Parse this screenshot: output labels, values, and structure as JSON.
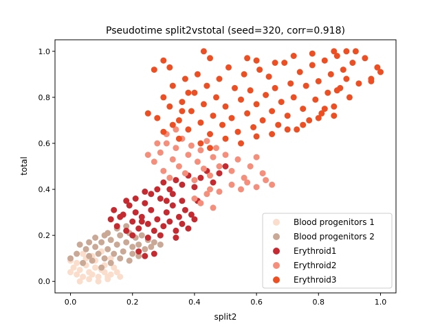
{
  "chart_data": {
    "type": "scatter",
    "title": "Pseudotime split2vstotal (seed=320, corr=0.918)",
    "xlabel": "split2",
    "ylabel": "total",
    "xlim": [
      -0.05,
      1.05
    ],
    "ylim": [
      -0.05,
      1.05
    ],
    "xticks": [
      "0.0",
      "0.2",
      "0.4",
      "0.6",
      "0.8",
      "1.0"
    ],
    "yticks": [
      "0.0",
      "0.2",
      "0.4",
      "0.6",
      "0.8",
      "1.0"
    ],
    "grid": false,
    "legend_position": "lower-right",
    "series": [
      {
        "name": "Blood progenitors 1",
        "color": "#fbddcb",
        "points": [
          [
            0.0,
            0.04
          ],
          [
            0.01,
            0.06
          ],
          [
            0.02,
            0.03
          ],
          [
            0.03,
            0.05
          ],
          [
            0.04,
            0.02
          ],
          [
            0.05,
            0.07
          ],
          [
            0.06,
            0.04
          ],
          [
            0.07,
            0.03
          ],
          [
            0.08,
            0.06
          ],
          [
            0.09,
            0.02
          ],
          [
            0.1,
            0.05
          ],
          [
            0.11,
            0.04
          ],
          [
            0.12,
            0.02
          ],
          [
            0.13,
            0.03
          ],
          [
            0.02,
            0.08
          ],
          [
            0.05,
            0.1
          ],
          [
            0.08,
            0.09
          ],
          [
            0.11,
            0.07
          ],
          [
            0.14,
            0.06
          ],
          [
            0.03,
            0.0
          ],
          [
            0.06,
            0.01
          ],
          [
            0.09,
            0.0
          ],
          [
            0.12,
            0.01
          ],
          [
            0.15,
            0.04
          ],
          [
            0.16,
            0.02
          ],
          [
            0.0,
            0.09
          ],
          [
            0.04,
            0.12
          ],
          [
            0.07,
            0.11
          ],
          [
            0.1,
            0.13
          ],
          [
            0.13,
            0.1
          ]
        ]
      },
      {
        "name": "Blood progenitors 2",
        "color": "#c9a896",
        "points": [
          [
            0.0,
            0.1
          ],
          [
            0.02,
            0.12
          ],
          [
            0.04,
            0.08
          ],
          [
            0.05,
            0.14
          ],
          [
            0.06,
            0.11
          ],
          [
            0.08,
            0.15
          ],
          [
            0.09,
            0.12
          ],
          [
            0.1,
            0.17
          ],
          [
            0.11,
            0.1
          ],
          [
            0.12,
            0.14
          ],
          [
            0.13,
            0.18
          ],
          [
            0.14,
            0.12
          ],
          [
            0.15,
            0.16
          ],
          [
            0.16,
            0.2
          ],
          [
            0.17,
            0.13
          ],
          [
            0.18,
            0.17
          ],
          [
            0.19,
            0.21
          ],
          [
            0.2,
            0.15
          ],
          [
            0.21,
            0.19
          ],
          [
            0.22,
            0.16
          ],
          [
            0.23,
            0.2
          ],
          [
            0.24,
            0.14
          ],
          [
            0.25,
            0.18
          ],
          [
            0.26,
            0.15
          ],
          [
            0.07,
            0.09
          ],
          [
            0.1,
            0.06
          ],
          [
            0.13,
            0.08
          ],
          [
            0.16,
            0.1
          ],
          [
            0.19,
            0.09
          ],
          [
            0.22,
            0.11
          ],
          [
            0.08,
            0.19
          ],
          [
            0.12,
            0.21
          ],
          [
            0.15,
            0.23
          ],
          [
            0.18,
            0.24
          ],
          [
            0.03,
            0.16
          ],
          [
            0.06,
            0.17
          ],
          [
            0.2,
            0.12
          ],
          [
            0.27,
            0.17
          ],
          [
            0.29,
            0.16
          ],
          [
            0.11,
            0.2
          ]
        ]
      },
      {
        "name": "Erythroid1",
        "color": "#c42a2f",
        "points": [
          [
            0.13,
            0.27
          ],
          [
            0.14,
            0.31
          ],
          [
            0.15,
            0.24
          ],
          [
            0.17,
            0.29
          ],
          [
            0.18,
            0.22
          ],
          [
            0.19,
            0.33
          ],
          [
            0.2,
            0.26
          ],
          [
            0.21,
            0.3
          ],
          [
            0.22,
            0.23
          ],
          [
            0.23,
            0.28
          ],
          [
            0.24,
            0.34
          ],
          [
            0.25,
            0.25
          ],
          [
            0.26,
            0.31
          ],
          [
            0.27,
            0.22
          ],
          [
            0.28,
            0.27
          ],
          [
            0.29,
            0.36
          ],
          [
            0.3,
            0.24
          ],
          [
            0.31,
            0.3
          ],
          [
            0.32,
            0.26
          ],
          [
            0.33,
            0.33
          ],
          [
            0.34,
            0.22
          ],
          [
            0.35,
            0.28
          ],
          [
            0.36,
            0.25
          ],
          [
            0.37,
            0.31
          ],
          [
            0.38,
            0.23
          ],
          [
            0.39,
            0.29
          ],
          [
            0.4,
            0.27
          ],
          [
            0.32,
            0.4
          ],
          [
            0.34,
            0.44
          ],
          [
            0.36,
            0.42
          ],
          [
            0.38,
            0.46
          ],
          [
            0.4,
            0.41
          ],
          [
            0.42,
            0.45
          ],
          [
            0.44,
            0.48
          ],
          [
            0.46,
            0.43
          ],
          [
            0.3,
            0.43
          ],
          [
            0.28,
            0.4
          ],
          [
            0.26,
            0.38
          ],
          [
            0.2,
            0.2
          ],
          [
            0.25,
            0.19
          ],
          [
            0.22,
            0.13
          ],
          [
            0.24,
            0.11
          ],
          [
            0.27,
            0.12
          ],
          [
            0.18,
            0.35
          ],
          [
            0.16,
            0.28
          ],
          [
            0.21,
            0.36
          ],
          [
            0.33,
            0.38
          ],
          [
            0.48,
            0.47
          ],
          [
            0.5,
            0.5
          ],
          [
            0.24,
            0.39
          ],
          [
            0.36,
            0.35
          ],
          [
            0.41,
            0.35
          ],
          [
            0.29,
            0.2
          ],
          [
            0.34,
            0.19
          ],
          [
            0.23,
            0.26
          ],
          [
            0.31,
            0.35
          ]
        ]
      },
      {
        "name": "Erythroid2",
        "color": "#f58f7c",
        "points": [
          [
            0.27,
            0.52
          ],
          [
            0.29,
            0.56
          ],
          [
            0.3,
            0.48
          ],
          [
            0.31,
            0.6
          ],
          [
            0.32,
            0.45
          ],
          [
            0.33,
            0.53
          ],
          [
            0.34,
            0.58
          ],
          [
            0.35,
            0.5
          ],
          [
            0.36,
            0.62
          ],
          [
            0.37,
            0.47
          ],
          [
            0.38,
            0.55
          ],
          [
            0.39,
            0.59
          ],
          [
            0.4,
            0.44
          ],
          [
            0.41,
            0.52
          ],
          [
            0.42,
            0.57
          ],
          [
            0.43,
            0.49
          ],
          [
            0.44,
            0.61
          ],
          [
            0.45,
            0.46
          ],
          [
            0.46,
            0.54
          ],
          [
            0.47,
            0.58
          ],
          [
            0.48,
            0.5
          ],
          [
            0.5,
            0.55
          ],
          [
            0.52,
            0.48
          ],
          [
            0.54,
            0.53
          ],
          [
            0.56,
            0.45
          ],
          [
            0.58,
            0.5
          ],
          [
            0.6,
            0.54
          ],
          [
            0.62,
            0.47
          ],
          [
            0.25,
            0.55
          ],
          [
            0.28,
            0.6
          ],
          [
            0.31,
            0.64
          ],
          [
            0.34,
            0.66
          ],
          [
            0.4,
            0.36
          ],
          [
            0.42,
            0.34
          ],
          [
            0.44,
            0.38
          ],
          [
            0.46,
            0.32
          ],
          [
            0.45,
            0.4
          ],
          [
            0.52,
            0.42
          ],
          [
            0.55,
            0.4
          ],
          [
            0.57,
            0.43
          ],
          [
            0.6,
            0.41
          ],
          [
            0.63,
            0.44
          ],
          [
            0.65,
            0.42
          ],
          [
            0.48,
            0.39
          ]
        ]
      },
      {
        "name": "Erythroid3",
        "color": "#ee4f22",
        "points": [
          [
            0.3,
            0.8
          ],
          [
            0.32,
            0.76
          ],
          [
            0.33,
            0.85
          ],
          [
            0.35,
            0.7
          ],
          [
            0.36,
            0.78
          ],
          [
            0.37,
            0.88
          ],
          [
            0.38,
            0.66
          ],
          [
            0.39,
            0.74
          ],
          [
            0.4,
            0.82
          ],
          [
            0.41,
            0.9
          ],
          [
            0.42,
            0.69
          ],
          [
            0.43,
            0.77
          ],
          [
            0.44,
            0.85
          ],
          [
            0.45,
            0.64
          ],
          [
            0.46,
            0.72
          ],
          [
            0.47,
            0.8
          ],
          [
            0.48,
            0.88
          ],
          [
            0.49,
            0.68
          ],
          [
            0.5,
            0.76
          ],
          [
            0.51,
            0.93
          ],
          [
            0.52,
            0.71
          ],
          [
            0.53,
            0.84
          ],
          [
            0.54,
            0.65
          ],
          [
            0.55,
            0.79
          ],
          [
            0.56,
            0.9
          ],
          [
            0.57,
            0.73
          ],
          [
            0.58,
            0.83
          ],
          [
            0.59,
            0.67
          ],
          [
            0.6,
            0.77
          ],
          [
            0.61,
            0.92
          ],
          [
            0.62,
            0.7
          ],
          [
            0.63,
            0.81
          ],
          [
            0.64,
            0.89
          ],
          [
            0.65,
            0.74
          ],
          [
            0.66,
            0.84
          ],
          [
            0.67,
            0.68
          ],
          [
            0.68,
            0.78
          ],
          [
            0.69,
            0.95
          ],
          [
            0.7,
            0.72
          ],
          [
            0.71,
            0.86
          ],
          [
            0.72,
            0.8
          ],
          [
            0.73,
            0.66
          ],
          [
            0.74,
            0.91
          ],
          [
            0.75,
            0.75
          ],
          [
            0.76,
            0.85
          ],
          [
            0.77,
            0.7
          ],
          [
            0.78,
            0.94
          ],
          [
            0.79,
            0.79
          ],
          [
            0.8,
            0.87
          ],
          [
            0.81,
            0.73
          ],
          [
            0.82,
            0.96
          ],
          [
            0.83,
            0.82
          ],
          [
            0.84,
            0.9
          ],
          [
            0.85,
            0.76
          ],
          [
            0.86,
            0.98
          ],
          [
            0.87,
            0.84
          ],
          [
            0.88,
            0.92
          ],
          [
            0.89,
            0.88
          ],
          [
            0.9,
            0.8
          ],
          [
            0.91,
            0.95
          ],
          [
            0.93,
            0.86
          ],
          [
            0.95,
            0.97
          ],
          [
            0.97,
            0.88
          ],
          [
            0.99,
            0.93
          ],
          [
            1.0,
            0.91
          ],
          [
            0.97,
            0.87
          ],
          [
            0.33,
            0.68
          ],
          [
            0.35,
            0.62
          ],
          [
            0.36,
            0.74
          ],
          [
            0.38,
            0.82
          ],
          [
            0.42,
            0.6
          ],
          [
            0.45,
            0.58
          ],
          [
            0.5,
            0.62
          ],
          [
            0.55,
            0.6
          ],
          [
            0.6,
            0.63
          ],
          [
            0.65,
            0.64
          ],
          [
            0.7,
            0.66
          ],
          [
            0.75,
            0.68
          ],
          [
            0.8,
            0.71
          ],
          [
            0.85,
            0.72
          ],
          [
            0.32,
            0.93
          ],
          [
            0.3,
            0.96
          ],
          [
            0.27,
            0.92
          ],
          [
            0.43,
            1.0
          ],
          [
            0.45,
            0.97
          ],
          [
            0.25,
            0.73
          ],
          [
            0.3,
            0.65
          ],
          [
            0.28,
            0.71
          ],
          [
            0.85,
            1.0
          ],
          [
            0.89,
            1.0
          ],
          [
            0.92,
            1.0
          ],
          [
            0.82,
            0.75
          ],
          [
            0.6,
            0.96
          ],
          [
            0.72,
            0.98
          ],
          [
            0.66,
            0.95
          ],
          [
            0.57,
            0.97
          ],
          [
            0.78,
            0.99
          ],
          [
            0.86,
            0.83
          ]
        ]
      }
    ]
  }
}
